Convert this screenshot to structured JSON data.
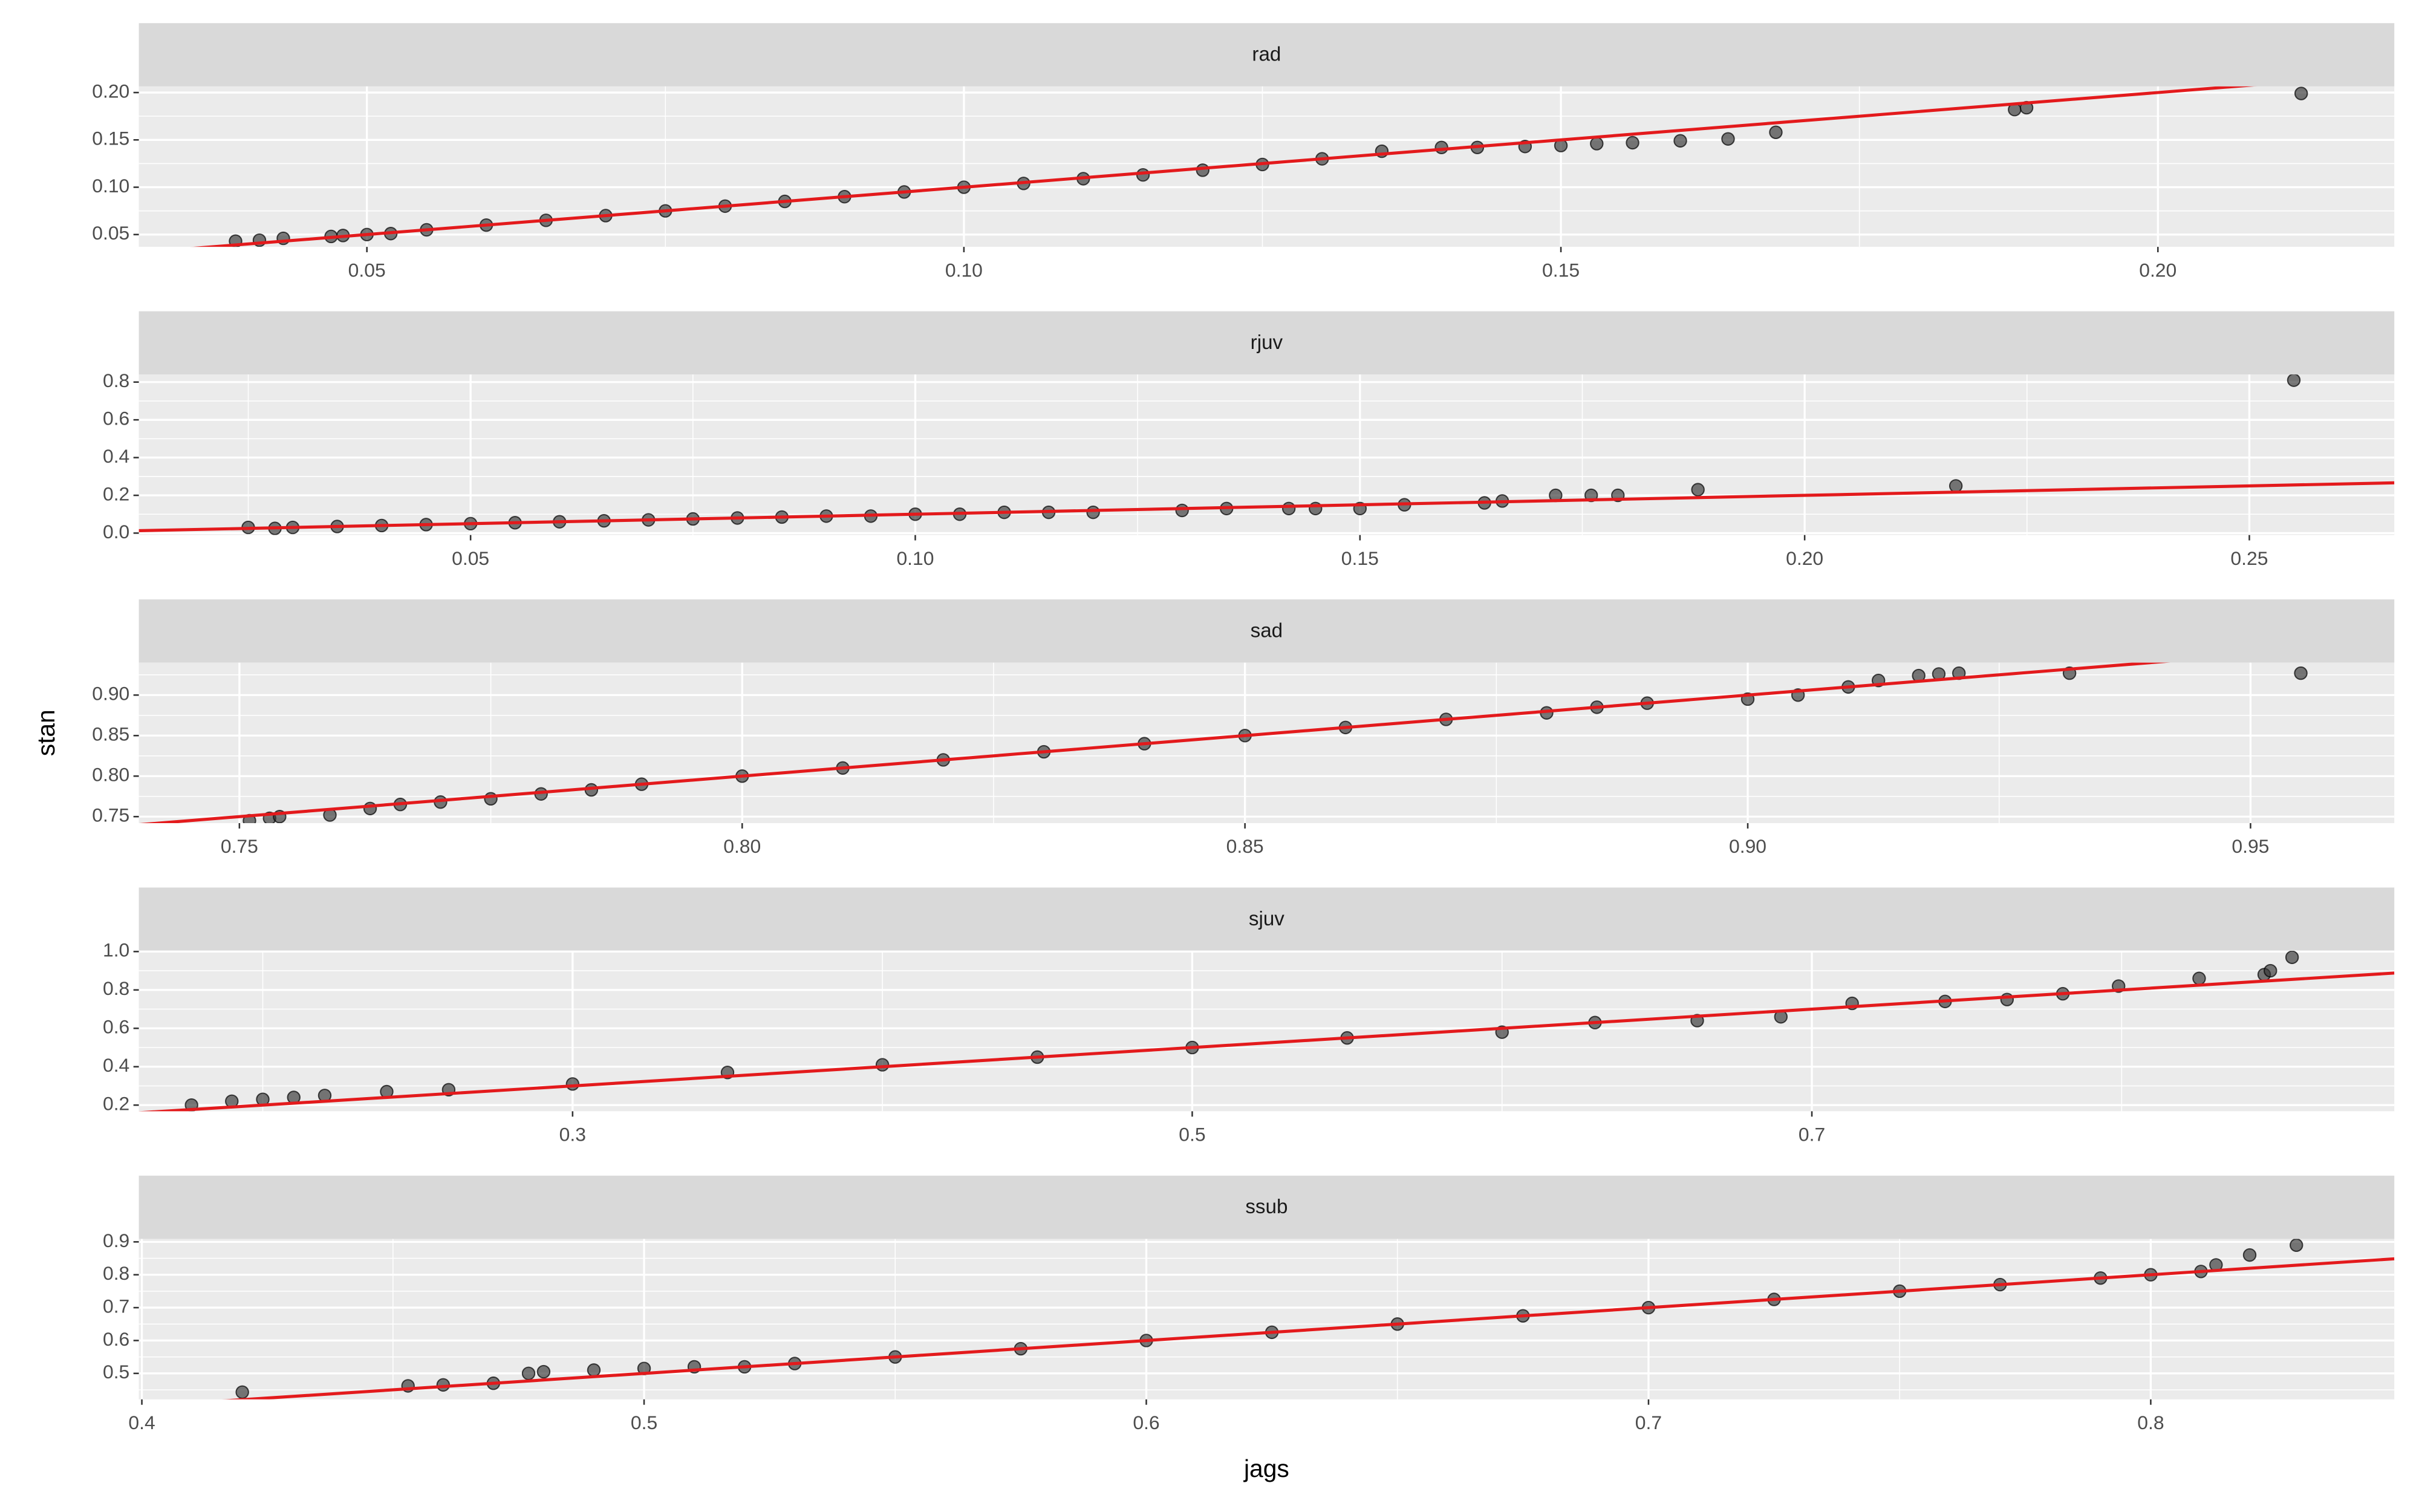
{
  "axis_labels": {
    "x": "jags",
    "y": "stan"
  },
  "chart_data": [
    {
      "type": "scatter",
      "title": "rad",
      "color": "#333333",
      "line_color": "#e31a1c",
      "reference_line": {
        "intercept": 0,
        "slope": 1
      },
      "xlim": [
        0.0309,
        0.2198
      ],
      "ylim": [
        0.037,
        0.2065
      ],
      "xticks": [
        0.05,
        {
          "value": 0.1,
          "label": "0.10"
        },
        0.15,
        {
          "value": 0.2,
          "label": "0.20"
        }
      ],
      "yticks": [
        0.05,
        {
          "value": 0.1,
          "label": "0.10"
        },
        0.15,
        {
          "value": 0.2,
          "label": "0.20"
        }
      ],
      "x": [
        0.039,
        0.041,
        0.043,
        0.047,
        0.048,
        0.05,
        0.052,
        0.055,
        0.06,
        0.065,
        0.07,
        0.075,
        0.08,
        0.085,
        0.09,
        0.095,
        0.1,
        0.105,
        0.11,
        0.115,
        0.12,
        0.125,
        0.13,
        0.135,
        0.14,
        0.143,
        0.147,
        0.15,
        0.153,
        0.156,
        0.16,
        0.164,
        0.168,
        0.188,
        0.189,
        0.212
      ],
      "values": [
        0.043,
        0.044,
        0.046,
        0.048,
        0.049,
        0.05,
        0.051,
        0.055,
        0.06,
        0.065,
        0.07,
        0.075,
        0.08,
        0.085,
        0.09,
        0.095,
        0.1,
        0.104,
        0.109,
        0.113,
        0.118,
        0.124,
        0.13,
        0.138,
        0.142,
        0.142,
        0.143,
        0.144,
        0.146,
        0.147,
        0.149,
        0.151,
        0.158,
        0.182,
        0.184,
        0.199
      ]
    },
    {
      "type": "scatter",
      "title": "rjuv",
      "color": "#333333",
      "line_color": "#e31a1c",
      "reference_line": {
        "intercept": 0,
        "slope": 1
      },
      "xlim": [
        0.0127,
        0.2663
      ],
      "ylim": [
        -0.01,
        0.84
      ],
      "xticks": [
        0.05,
        {
          "value": 0.1,
          "label": "0.10"
        },
        0.15,
        {
          "value": 0.2,
          "label": "0.20"
        },
        0.25
      ],
      "yticks": [
        {
          "value": 0,
          "label": "0.0"
        },
        0.2,
        0.4,
        0.6,
        0.8
      ],
      "x": [
        0.025,
        0.028,
        0.03,
        0.035,
        0.04,
        0.045,
        0.05,
        0.055,
        0.06,
        0.065,
        0.07,
        0.075,
        0.08,
        0.085,
        0.09,
        0.095,
        0.1,
        0.105,
        0.11,
        0.115,
        0.12,
        0.13,
        0.135,
        0.142,
        0.145,
        0.15,
        0.155,
        0.164,
        0.166,
        0.172,
        0.176,
        0.179,
        0.188,
        0.217,
        0.255
      ],
      "values": [
        0.03,
        0.025,
        0.03,
        0.035,
        0.04,
        0.045,
        0.05,
        0.055,
        0.06,
        0.065,
        0.07,
        0.075,
        0.08,
        0.085,
        0.09,
        0.09,
        0.1,
        0.1,
        0.11,
        0.11,
        0.11,
        0.12,
        0.13,
        0.13,
        0.13,
        0.13,
        0.15,
        0.16,
        0.17,
        0.2,
        0.2,
        0.2,
        0.23,
        0.25,
        0.81
      ]
    },
    {
      "type": "scatter",
      "title": "sad",
      "color": "#333333",
      "line_color": "#e31a1c",
      "reference_line": {
        "intercept": 0,
        "slope": 1
      },
      "xlim": [
        0.74,
        0.9643
      ],
      "ylim": [
        0.742,
        0.94
      ],
      "xticks": [
        0.75,
        {
          "value": 0.8,
          "label": "0.80"
        },
        0.85,
        {
          "value": 0.9,
          "label": "0.90"
        },
        0.95
      ],
      "yticks": [
        0.75,
        {
          "value": 0.8,
          "label": "0.80"
        },
        0.85,
        {
          "value": 0.9,
          "label": "0.90"
        }
      ],
      "x": [
        0.751,
        0.753,
        0.754,
        0.759,
        0.763,
        0.766,
        0.77,
        0.775,
        0.78,
        0.785,
        0.79,
        0.8,
        0.81,
        0.82,
        0.83,
        0.84,
        0.85,
        0.86,
        0.87,
        0.88,
        0.885,
        0.89,
        0.9,
        0.905,
        0.91,
        0.913,
        0.917,
        0.919,
        0.921,
        0.932,
        0.955
      ],
      "values": [
        0.745,
        0.748,
        0.75,
        0.752,
        0.76,
        0.765,
        0.768,
        0.772,
        0.778,
        0.783,
        0.79,
        0.8,
        0.81,
        0.82,
        0.83,
        0.84,
        0.85,
        0.86,
        0.87,
        0.878,
        0.885,
        0.89,
        0.895,
        0.9,
        0.91,
        0.918,
        0.924,
        0.926,
        0.927,
        0.927,
        0.927
      ]
    },
    {
      "type": "scatter",
      "title": "sjuv",
      "color": "#333333",
      "line_color": "#e31a1c",
      "reference_line": {
        "intercept": 0,
        "slope": 1
      },
      "xlim": [
        0.16,
        0.888
      ],
      "ylim": [
        0.168,
        1.004
      ],
      "xticks": [
        0.3,
        0.5,
        0.7
      ],
      "yticks": [
        0.2,
        0.4,
        0.6,
        0.8,
        {
          "value": 1,
          "label": "1.0"
        }
      ],
      "x": [
        0.177,
        0.19,
        0.2,
        0.21,
        0.22,
        0.24,
        0.26,
        0.3,
        0.35,
        0.4,
        0.45,
        0.5,
        0.55,
        0.6,
        0.63,
        0.663,
        0.69,
        0.713,
        0.743,
        0.763,
        0.781,
        0.799,
        0.825,
        0.846,
        0.848,
        0.855
      ],
      "values": [
        0.2,
        0.22,
        0.23,
        0.24,
        0.25,
        0.27,
        0.28,
        0.31,
        0.37,
        0.41,
        0.45,
        0.5,
        0.55,
        0.58,
        0.63,
        0.64,
        0.66,
        0.73,
        0.74,
        0.75,
        0.78,
        0.82,
        0.86,
        0.88,
        0.9,
        0.97
      ]
    },
    {
      "type": "scatter",
      "title": "ssub",
      "color": "#333333",
      "line_color": "#e31a1c",
      "reference_line": {
        "intercept": 0,
        "slope": 1
      },
      "xlim": [
        0.3994,
        0.8485
      ],
      "ylim": [
        0.421,
        0.909
      ],
      "xticks": [
        0.4,
        0.5,
        0.6,
        0.7,
        0.8
      ],
      "yticks": [
        0.5,
        0.6,
        0.7,
        0.8,
        0.9
      ],
      "x": [
        0.42,
        0.453,
        0.46,
        0.47,
        0.477,
        0.48,
        0.49,
        0.5,
        0.51,
        0.52,
        0.53,
        0.55,
        0.575,
        0.6,
        0.625,
        0.65,
        0.675,
        0.7,
        0.725,
        0.75,
        0.77,
        0.79,
        0.8,
        0.81,
        0.813,
        0.8197,
        0.829
      ],
      "values": [
        0.443,
        0.462,
        0.465,
        0.47,
        0.5,
        0.505,
        0.51,
        0.515,
        0.52,
        0.52,
        0.53,
        0.55,
        0.575,
        0.6,
        0.625,
        0.65,
        0.675,
        0.7,
        0.725,
        0.75,
        0.77,
        0.79,
        0.8,
        0.81,
        0.83,
        0.86,
        0.89
      ]
    }
  ]
}
